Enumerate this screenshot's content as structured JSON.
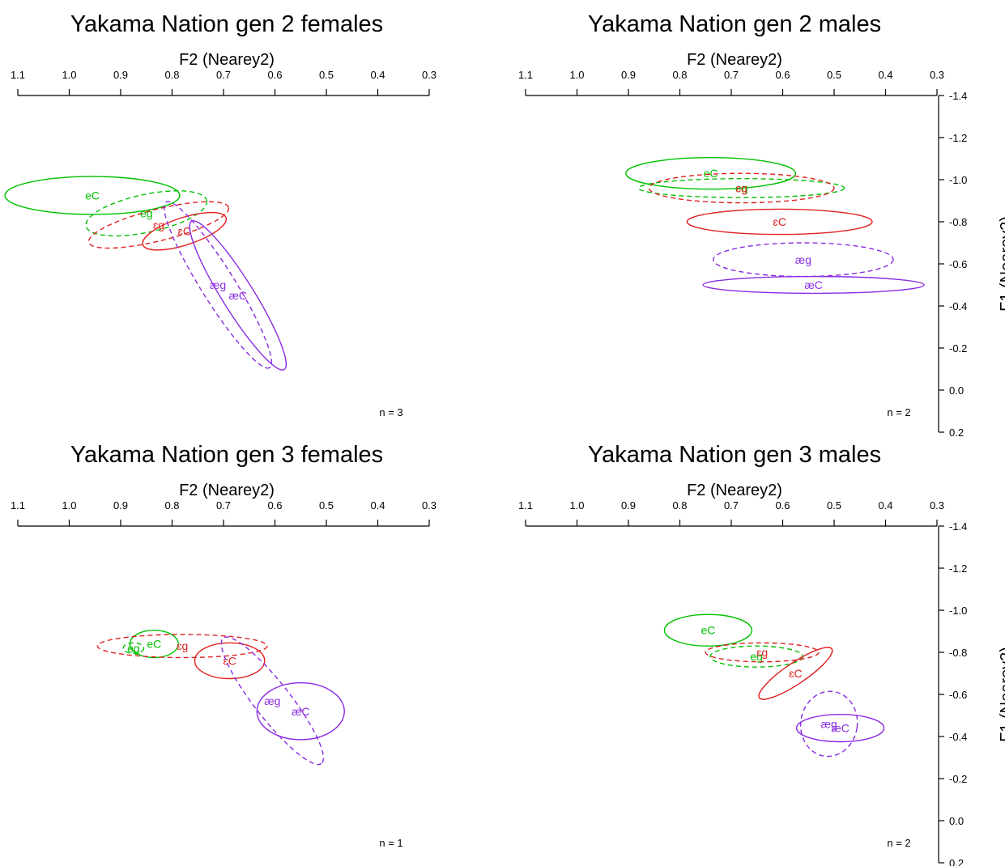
{
  "colors": {
    "eC": "#00c000",
    "eg": "#00c000",
    "ɛC": "#e02020",
    "ɛg": "#e02020",
    "æC": "#8a2be2",
    "æg": "#8a2be2",
    "axis": "#000000"
  },
  "chart_data": [
    {
      "type": "scatter",
      "title": "Yakama Nation gen 2 females",
      "xlabel": "F2 (Nearey2)",
      "ylabel": "",
      "xlim": [
        1.1,
        0.3
      ],
      "ylim": [
        -1.4,
        0.2
      ],
      "xticks": [
        "1.1",
        "1.0",
        "0.9",
        "0.8",
        "0.7",
        "0.6",
        "0.5",
        "0.4",
        "0.3"
      ],
      "yticks": [],
      "annotation": "n = 3",
      "series": [
        {
          "name": "eC",
          "x": 0.955,
          "y": -0.925,
          "rx": 0.17,
          "ry": 0.09,
          "angle": 0,
          "dashed": false
        },
        {
          "name": "eg",
          "x": 0.85,
          "y": -0.84,
          "rx": 0.12,
          "ry": 0.09,
          "angle": -12,
          "dashed": true
        },
        {
          "name": "ɛg",
          "x": 0.826,
          "y": -0.785,
          "rx": 0.14,
          "ry": 0.075,
          "angle": -14,
          "dashed": true
        },
        {
          "name": "ɛC",
          "x": 0.776,
          "y": -0.755,
          "rx": 0.085,
          "ry": 0.065,
          "angle": -18,
          "dashed": false
        },
        {
          "name": "æg",
          "x": 0.711,
          "y": -0.5,
          "rx": 0.19,
          "ry": 0.08,
          "angle": 58,
          "dashed": true
        },
        {
          "name": "æC",
          "x": 0.672,
          "y": -0.45,
          "rx": 0.17,
          "ry": 0.075,
          "angle": 58,
          "dashed": false
        }
      ]
    },
    {
      "type": "scatter",
      "title": "Yakama Nation gen 2 males",
      "xlabel": "F2 (Nearey2)",
      "ylabel": "F1 (Nearey2)",
      "xlim": [
        1.1,
        0.3
      ],
      "ylim": [
        -1.4,
        0.2
      ],
      "xticks": [
        "1.1",
        "1.0",
        "0.9",
        "0.8",
        "0.7",
        "0.6",
        "0.5",
        "0.4",
        "0.3"
      ],
      "yticks": [
        "-1.4",
        "-1.2",
        "-1.0",
        "-0.8",
        "-0.6",
        "-0.4",
        "-0.2",
        "0.0",
        "0.2"
      ],
      "annotation": "n = 2",
      "series": [
        {
          "name": "eC",
          "x": 0.74,
          "y": -1.03,
          "rx": 0.165,
          "ry": 0.075,
          "angle": 0,
          "dashed": false
        },
        {
          "name": "eg",
          "x": 0.68,
          "y": -0.96,
          "rx": 0.2,
          "ry": 0.045,
          "angle": 0,
          "dashed": true
        },
        {
          "name": "ɛg",
          "x": 0.68,
          "y": -0.96,
          "rx": 0.18,
          "ry": 0.07,
          "angle": 0,
          "dashed": true
        },
        {
          "name": "ɛC",
          "x": 0.606,
          "y": -0.8,
          "rx": 0.18,
          "ry": 0.06,
          "angle": 0,
          "dashed": false
        },
        {
          "name": "æg",
          "x": 0.56,
          "y": -0.62,
          "rx": 0.175,
          "ry": 0.08,
          "angle": 0,
          "dashed": true
        },
        {
          "name": "æC",
          "x": 0.54,
          "y": -0.5,
          "rx": 0.215,
          "ry": 0.04,
          "angle": 0,
          "dashed": false
        }
      ]
    },
    {
      "type": "scatter",
      "title": "Yakama Nation gen 3 females",
      "xlabel": "F2 (Nearey2)",
      "ylabel": "",
      "xlim": [
        1.1,
        0.3
      ],
      "ylim": [
        -1.4,
        0.2
      ],
      "xticks": [
        "1.1",
        "1.0",
        "0.9",
        "0.8",
        "0.7",
        "0.6",
        "0.5",
        "0.4",
        "0.3"
      ],
      "yticks": [],
      "annotation": "n = 1",
      "series": [
        {
          "name": "eC",
          "x": 0.835,
          "y": -0.84,
          "rx": 0.047,
          "ry": 0.065,
          "angle": 0,
          "dashed": false
        },
        {
          "name": "eg",
          "x": 0.875,
          "y": -0.82,
          "rx": 0.02,
          "ry": 0.025,
          "angle": 0,
          "dashed": true
        },
        {
          "name": "ɛg",
          "x": 0.78,
          "y": -0.83,
          "rx": 0.165,
          "ry": 0.055,
          "angle": 0,
          "dashed": true
        },
        {
          "name": "ɛC",
          "x": 0.688,
          "y": -0.76,
          "rx": 0.068,
          "ry": 0.085,
          "angle": 0,
          "dashed": false
        },
        {
          "name": "æg",
          "x": 0.605,
          "y": -0.57,
          "rx": 0.155,
          "ry": 0.085,
          "angle": 52,
          "dashed": true
        },
        {
          "name": "æC",
          "x": 0.55,
          "y": -0.52,
          "rx": 0.085,
          "ry": 0.135,
          "angle": 0,
          "dashed": false
        }
      ]
    },
    {
      "type": "scatter",
      "title": "Yakama Nation gen 3 males",
      "xlabel": "F2 (Nearey2)",
      "ylabel": "F1 (Nearey2)",
      "xlim": [
        1.1,
        0.3
      ],
      "ylim": [
        -1.4,
        0.2
      ],
      "xticks": [
        "1.1",
        "1.0",
        "0.9",
        "0.8",
        "0.7",
        "0.6",
        "0.5",
        "0.4",
        "0.3"
      ],
      "yticks": [
        "-1.4",
        "-1.2",
        "-1.0",
        "-0.8",
        "-0.6",
        "-0.4",
        "-0.2",
        "0.0",
        "0.2"
      ],
      "annotation": "n = 2",
      "series": [
        {
          "name": "eC",
          "x": 0.745,
          "y": -0.905,
          "rx": 0.085,
          "ry": 0.075,
          "angle": 0,
          "dashed": false
        },
        {
          "name": "eg",
          "x": 0.651,
          "y": -0.78,
          "rx": 0.09,
          "ry": 0.05,
          "angle": 0,
          "dashed": true
        },
        {
          "name": "ɛg",
          "x": 0.64,
          "y": -0.8,
          "rx": 0.11,
          "ry": 0.045,
          "angle": 0,
          "dashed": true
        },
        {
          "name": "ɛC",
          "x": 0.575,
          "y": -0.7,
          "rx": 0.085,
          "ry": 0.05,
          "angle": -34,
          "dashed": false
        },
        {
          "name": "æg",
          "x": 0.51,
          "y": -0.46,
          "rx": 0.055,
          "ry": 0.155,
          "angle": 8,
          "dashed": true
        },
        {
          "name": "æC",
          "x": 0.488,
          "y": -0.44,
          "rx": 0.085,
          "ry": 0.065,
          "angle": 0,
          "dashed": false
        }
      ]
    }
  ]
}
